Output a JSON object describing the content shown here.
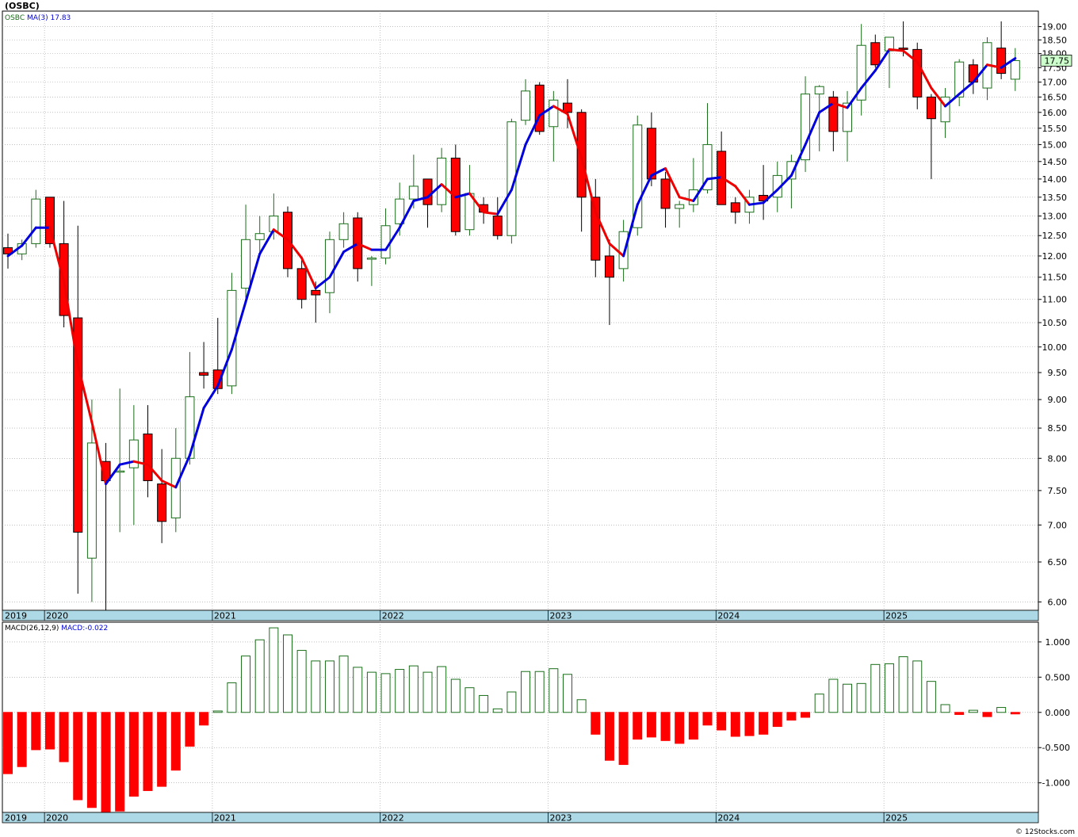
{
  "window": {
    "title": "(OSBC)",
    "watermark": "© 12Stocks.com"
  },
  "colors": {
    "up": "#1a6e1a",
    "down": "#ff0000",
    "ma_up": "#0000dd",
    "ma_down": "#ee0000",
    "grid": "#999999",
    "band": "#add8e6",
    "price_box_bg": "#ccffcc"
  },
  "chart_data": [
    {
      "type": "candlestick",
      "name": "price",
      "title": "(OSBC)",
      "legend": {
        "symbol": "OSBC",
        "ma_label": "MA(3)",
        "ma_value": "17.83"
      },
      "last_price": "17.75",
      "y_scale": "log",
      "ylim": [
        5.9,
        19.6
      ],
      "y_ticks": [
        "6.00",
        "6.50",
        "7.00",
        "7.50",
        "8.00",
        "8.50",
        "9.00",
        "9.50",
        "10.00",
        "10.50",
        "11.00",
        "11.50",
        "12.00",
        "12.50",
        "13.00",
        "13.50",
        "14.00",
        "14.50",
        "15.00",
        "15.50",
        "16.00",
        "16.50",
        "17.00",
        "17.50",
        "18.00",
        "18.50",
        "19.00"
      ],
      "x_year_labels": [
        "2019",
        "2020",
        "2021",
        "2022",
        "2023",
        "2024",
        "2025"
      ],
      "year_label_month_index": [
        0,
        3,
        15,
        27,
        39,
        51,
        63
      ],
      "months": [
        "2019-10",
        "2019-11",
        "2019-12",
        "2020-01",
        "2020-02",
        "2020-03",
        "2020-04",
        "2020-05",
        "2020-06",
        "2020-07",
        "2020-08",
        "2020-09",
        "2020-10",
        "2020-11",
        "2020-12",
        "2021-01",
        "2021-02",
        "2021-03",
        "2021-04",
        "2021-05",
        "2021-06",
        "2021-07",
        "2021-08",
        "2021-09",
        "2021-10",
        "2021-11",
        "2021-12",
        "2022-01",
        "2022-02",
        "2022-03",
        "2022-04",
        "2022-05",
        "2022-06",
        "2022-07",
        "2022-08",
        "2022-09",
        "2022-10",
        "2022-11",
        "2022-12",
        "2023-01",
        "2023-02",
        "2023-03",
        "2023-04",
        "2023-05",
        "2023-06",
        "2023-07",
        "2023-08",
        "2023-09",
        "2023-10",
        "2023-11",
        "2023-12",
        "2024-01",
        "2024-02",
        "2024-03",
        "2024-04",
        "2024-05",
        "2024-06",
        "2024-07",
        "2024-08",
        "2024-09",
        "2024-10",
        "2024-11",
        "2024-12",
        "2025-01",
        "2025-02",
        "2025-03",
        "2025-04",
        "2025-05",
        "2025-06",
        "2025-07",
        "2025-08",
        "2025-09",
        "2025-10"
      ],
      "ohlc": [
        [
          12.2,
          12.55,
          11.7,
          12.05
        ],
        [
          12.05,
          12.4,
          11.9,
          12.3
        ],
        [
          12.3,
          13.7,
          12.2,
          13.45
        ],
        [
          13.5,
          13.5,
          12.2,
          12.3
        ],
        [
          12.3,
          13.4,
          10.4,
          10.65
        ],
        [
          10.6,
          12.75,
          6.1,
          6.9
        ],
        [
          6.55,
          9.0,
          6.0,
          8.25
        ],
        [
          7.95,
          8.25,
          5.9,
          7.65
        ],
        [
          7.8,
          9.2,
          6.9,
          7.8
        ],
        [
          7.85,
          8.9,
          7.0,
          8.3
        ],
        [
          8.4,
          8.9,
          7.4,
          7.65
        ],
        [
          7.6,
          8.15,
          6.75,
          7.05
        ],
        [
          7.1,
          8.5,
          6.9,
          8.0
        ],
        [
          8.0,
          9.9,
          7.9,
          9.05
        ],
        [
          9.5,
          10.1,
          9.2,
          9.45
        ],
        [
          9.55,
          10.6,
          9.1,
          9.2
        ],
        [
          9.25,
          11.6,
          9.1,
          11.2
        ],
        [
          11.25,
          13.3,
          11.0,
          12.4
        ],
        [
          12.4,
          13.0,
          12.0,
          12.55
        ],
        [
          12.6,
          13.6,
          12.4,
          13.0
        ],
        [
          13.1,
          13.25,
          11.5,
          11.7
        ],
        [
          11.7,
          11.9,
          10.8,
          11.0
        ],
        [
          11.2,
          11.4,
          10.5,
          11.1
        ],
        [
          11.15,
          12.6,
          10.7,
          12.4
        ],
        [
          12.4,
          13.1,
          12.2,
          12.8
        ],
        [
          12.95,
          13.1,
          11.4,
          11.7
        ],
        [
          11.95,
          12.0,
          11.3,
          11.95
        ],
        [
          11.95,
          13.2,
          11.8,
          12.75
        ],
        [
          12.8,
          13.9,
          12.5,
          13.45
        ],
        [
          13.45,
          14.7,
          13.2,
          13.8
        ],
        [
          14.0,
          14.0,
          12.7,
          13.3
        ],
        [
          13.3,
          14.9,
          13.1,
          14.6
        ],
        [
          14.6,
          15.0,
          12.5,
          12.6
        ],
        [
          12.65,
          14.4,
          12.5,
          13.6
        ],
        [
          13.3,
          13.5,
          12.8,
          13.1
        ],
        [
          13.0,
          13.5,
          12.4,
          12.5
        ],
        [
          12.5,
          15.8,
          12.3,
          15.7
        ],
        [
          15.75,
          17.1,
          15.6,
          16.7
        ],
        [
          16.9,
          17.0,
          15.3,
          15.4
        ],
        [
          15.55,
          16.7,
          14.5,
          16.4
        ],
        [
          16.3,
          17.1,
          15.5,
          16.0
        ],
        [
          16.0,
          16.1,
          12.6,
          13.5
        ],
        [
          13.5,
          14.0,
          11.5,
          11.9
        ],
        [
          12.0,
          12.4,
          10.45,
          11.5
        ],
        [
          11.7,
          12.9,
          11.4,
          12.6
        ],
        [
          12.7,
          15.9,
          12.5,
          15.6
        ],
        [
          15.5,
          16.0,
          13.8,
          14.0
        ],
        [
          14.0,
          14.2,
          12.7,
          13.2
        ],
        [
          13.2,
          13.4,
          12.7,
          13.3
        ],
        [
          13.3,
          14.6,
          13.1,
          13.7
        ],
        [
          13.7,
          16.3,
          13.6,
          15.0
        ],
        [
          14.8,
          15.4,
          13.3,
          13.3
        ],
        [
          13.35,
          13.5,
          12.8,
          13.1
        ],
        [
          13.1,
          13.7,
          12.8,
          13.5
        ],
        [
          13.55,
          14.4,
          12.9,
          13.4
        ],
        [
          13.5,
          14.5,
          13.1,
          14.1
        ],
        [
          14.0,
          14.7,
          13.2,
          14.5
        ],
        [
          14.55,
          17.2,
          14.2,
          16.6
        ],
        [
          16.6,
          16.9,
          14.8,
          16.85
        ],
        [
          16.5,
          16.7,
          14.8,
          15.4
        ],
        [
          15.4,
          16.7,
          14.5,
          16.3
        ],
        [
          16.4,
          19.1,
          15.9,
          18.3
        ],
        [
          18.4,
          18.7,
          17.5,
          17.6
        ],
        [
          18.1,
          18.5,
          16.8,
          18.6
        ],
        [
          18.2,
          19.2,
          17.9,
          18.15
        ],
        [
          18.15,
          18.4,
          16.1,
          16.5
        ],
        [
          16.5,
          16.6,
          14.0,
          15.8
        ],
        [
          15.7,
          16.8,
          15.2,
          16.5
        ],
        [
          16.5,
          17.8,
          16.2,
          17.7
        ],
        [
          17.6,
          17.8,
          16.6,
          17.0
        ],
        [
          16.8,
          18.6,
          16.4,
          18.4
        ],
        [
          18.2,
          19.2,
          17.1,
          17.3
        ],
        [
          17.1,
          18.2,
          16.7,
          17.75
        ]
      ],
      "ma3": [
        12.0,
        12.25,
        12.7,
        12.7,
        11.4,
        9.65,
        8.6,
        7.6,
        7.9,
        7.95,
        7.9,
        7.65,
        7.55,
        8.05,
        8.85,
        9.25,
        9.95,
        10.95,
        12.05,
        12.65,
        12.4,
        11.95,
        11.25,
        11.5,
        12.1,
        12.3,
        12.15,
        12.15,
        12.7,
        13.4,
        13.5,
        13.85,
        13.5,
        13.6,
        13.1,
        13.05,
        13.7,
        15.0,
        15.9,
        16.2,
        15.95,
        14.6,
        13.1,
        12.3,
        12.0,
        13.3,
        14.1,
        14.3,
        13.5,
        13.4,
        14.0,
        14.05,
        13.8,
        13.3,
        13.35,
        13.7,
        14.1,
        15.0,
        16.0,
        16.3,
        16.15,
        16.8,
        17.4,
        18.15,
        18.1,
        17.7,
        16.8,
        16.2,
        16.6,
        17.0,
        17.6,
        17.5,
        17.83
      ]
    },
    {
      "type": "bar",
      "name": "macd",
      "legend": {
        "label": "MACD(26,12,9)",
        "value_label": "MACD:-0.022"
      },
      "ylim": [
        -1.42,
        1.28
      ],
      "y_ticks": [
        "1.000",
        "0.500",
        "0.000",
        "-0.500",
        "-1.000"
      ],
      "values": [
        -0.87,
        -0.77,
        -0.53,
        -0.52,
        -0.7,
        -1.24,
        -1.35,
        -1.43,
        -1.4,
        -1.19,
        -1.11,
        -1.05,
        -0.82,
        -0.48,
        -0.18,
        0.02,
        0.42,
        0.8,
        1.03,
        1.2,
        1.1,
        0.88,
        0.73,
        0.73,
        0.8,
        0.64,
        0.57,
        0.55,
        0.61,
        0.66,
        0.57,
        0.65,
        0.47,
        0.35,
        0.24,
        0.05,
        0.29,
        0.58,
        0.58,
        0.62,
        0.54,
        0.18,
        -0.31,
        -0.68,
        -0.74,
        -0.38,
        -0.35,
        -0.4,
        -0.44,
        -0.38,
        -0.18,
        -0.25,
        -0.34,
        -0.33,
        -0.31,
        -0.2,
        -0.11,
        -0.07,
        0.26,
        0.47,
        0.4,
        0.41,
        0.68,
        0.69,
        0.79,
        0.73,
        0.44,
        0.11,
        -0.03,
        0.03,
        -0.06,
        0.07,
        -0.022
      ]
    }
  ]
}
